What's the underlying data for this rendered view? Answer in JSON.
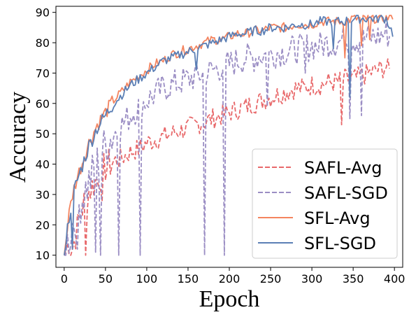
{
  "chart_data": {
    "type": "line",
    "xlabel": "Epoch",
    "ylabel": "Accuracy",
    "xlim": [
      -10,
      410
    ],
    "ylim": [
      6,
      92
    ],
    "x_ticks": [
      0,
      50,
      100,
      150,
      200,
      250,
      300,
      350,
      400
    ],
    "y_ticks": [
      10,
      20,
      30,
      40,
      50,
      60,
      70,
      80,
      90
    ],
    "legend_position": "bottom-right",
    "grid": false,
    "series": [
      {
        "name": "SAFL-Avg",
        "color": "#e8686a",
        "dash": "dashed",
        "x": [
          0,
          5,
          10,
          15,
          20,
          25,
          30,
          35,
          40,
          45,
          50,
          60,
          70,
          80,
          90,
          100,
          110,
          120,
          130,
          140,
          150,
          160,
          170,
          180,
          190,
          200,
          210,
          220,
          230,
          240,
          250,
          260,
          270,
          280,
          290,
          300,
          310,
          320,
          330,
          340,
          350,
          360,
          370,
          380,
          390,
          395
        ],
        "y": [
          10,
          14,
          12,
          18,
          24,
          28,
          31,
          33,
          35,
          37,
          39,
          41,
          42,
          44,
          45,
          47,
          48,
          49,
          50,
          51,
          52,
          53,
          54,
          55,
          56,
          57,
          58,
          59,
          60,
          61,
          62,
          63,
          64,
          65,
          65,
          66,
          66,
          67,
          67,
          68,
          68,
          69,
          70,
          71,
          72,
          70
        ],
        "dips": [
          [
            10,
            12
          ],
          [
            25,
            10
          ],
          [
            45,
            28
          ],
          [
            335,
            53
          ]
        ]
      },
      {
        "name": "SAFL-SGD",
        "color": "#9b8ec4",
        "dash": "dashed",
        "x": [
          0,
          5,
          10,
          15,
          20,
          25,
          30,
          35,
          40,
          45,
          50,
          60,
          70,
          80,
          90,
          100,
          110,
          120,
          130,
          140,
          150,
          160,
          170,
          180,
          190,
          200,
          210,
          220,
          230,
          240,
          250,
          260,
          270,
          280,
          290,
          300,
          310,
          320,
          330,
          340,
          350,
          360,
          370,
          380,
          390,
          395
        ],
        "y": [
          10,
          15,
          20,
          24,
          28,
          31,
          34,
          37,
          40,
          43,
          46,
          50,
          53,
          56,
          59,
          61,
          63,
          65,
          66,
          67,
          68,
          69,
          70,
          71,
          72,
          73,
          74,
          75,
          75,
          76,
          76,
          77,
          77,
          78,
          78,
          79,
          79,
          80,
          80,
          81,
          81,
          81,
          82,
          82,
          83,
          82
        ],
        "dips": [
          [
            16,
            12
          ],
          [
            38,
            11
          ],
          [
            43,
            10
          ],
          [
            65,
            10
          ],
          [
            92,
            10
          ],
          [
            170,
            10
          ],
          [
            193,
            10
          ],
          [
            245,
            59
          ],
          [
            292,
            70
          ],
          [
            345,
            55
          ],
          [
            360,
            56
          ]
        ]
      },
      {
        "name": "SFL-Avg",
        "color": "#f4845f",
        "dash": "solid",
        "x": [
          0,
          5,
          10,
          15,
          20,
          25,
          30,
          35,
          40,
          45,
          50,
          60,
          70,
          80,
          90,
          100,
          110,
          120,
          130,
          140,
          150,
          160,
          170,
          180,
          190,
          200,
          210,
          220,
          230,
          240,
          250,
          260,
          270,
          280,
          290,
          300,
          310,
          320,
          330,
          340,
          350,
          360,
          370,
          380,
          390,
          398
        ],
        "y": [
          10,
          22,
          30,
          35,
          39,
          43,
          47,
          50,
          53,
          55,
          57,
          61,
          64,
          67,
          69,
          71,
          73,
          74,
          76,
          77,
          78,
          79,
          80,
          81,
          81,
          82,
          83,
          83,
          84,
          84,
          85,
          85,
          85,
          86,
          86,
          86,
          87,
          87,
          87,
          87,
          88,
          88,
          88,
          88,
          88,
          89
        ],
        "dips": [
          [
            340,
            75
          ],
          [
            360,
            79
          ],
          [
            370,
            81
          ]
        ]
      },
      {
        "name": "SFL-SGD",
        "color": "#5b7fb5",
        "dash": "solid",
        "x": [
          0,
          5,
          10,
          15,
          20,
          25,
          30,
          35,
          40,
          45,
          50,
          60,
          70,
          80,
          90,
          100,
          110,
          120,
          130,
          140,
          150,
          160,
          170,
          180,
          190,
          200,
          210,
          220,
          230,
          240,
          250,
          260,
          270,
          280,
          290,
          300,
          310,
          320,
          330,
          340,
          350,
          360,
          370,
          380,
          390,
          398
        ],
        "y": [
          10,
          21,
          29,
          34,
          38,
          42,
          46,
          49,
          52,
          54,
          56,
          60,
          63,
          66,
          68,
          70,
          72,
          74,
          75,
          76,
          77,
          78,
          79,
          80,
          81,
          82,
          83,
          83,
          84,
          84,
          85,
          85,
          85,
          86,
          86,
          86,
          87,
          87,
          87,
          87,
          88,
          88,
          88,
          88,
          88,
          83
        ],
        "dips": [
          [
            10,
            12
          ],
          [
            160,
            71
          ],
          [
            325,
            78
          ],
          [
            345,
            62
          ],
          [
            398,
            82
          ]
        ]
      }
    ]
  }
}
